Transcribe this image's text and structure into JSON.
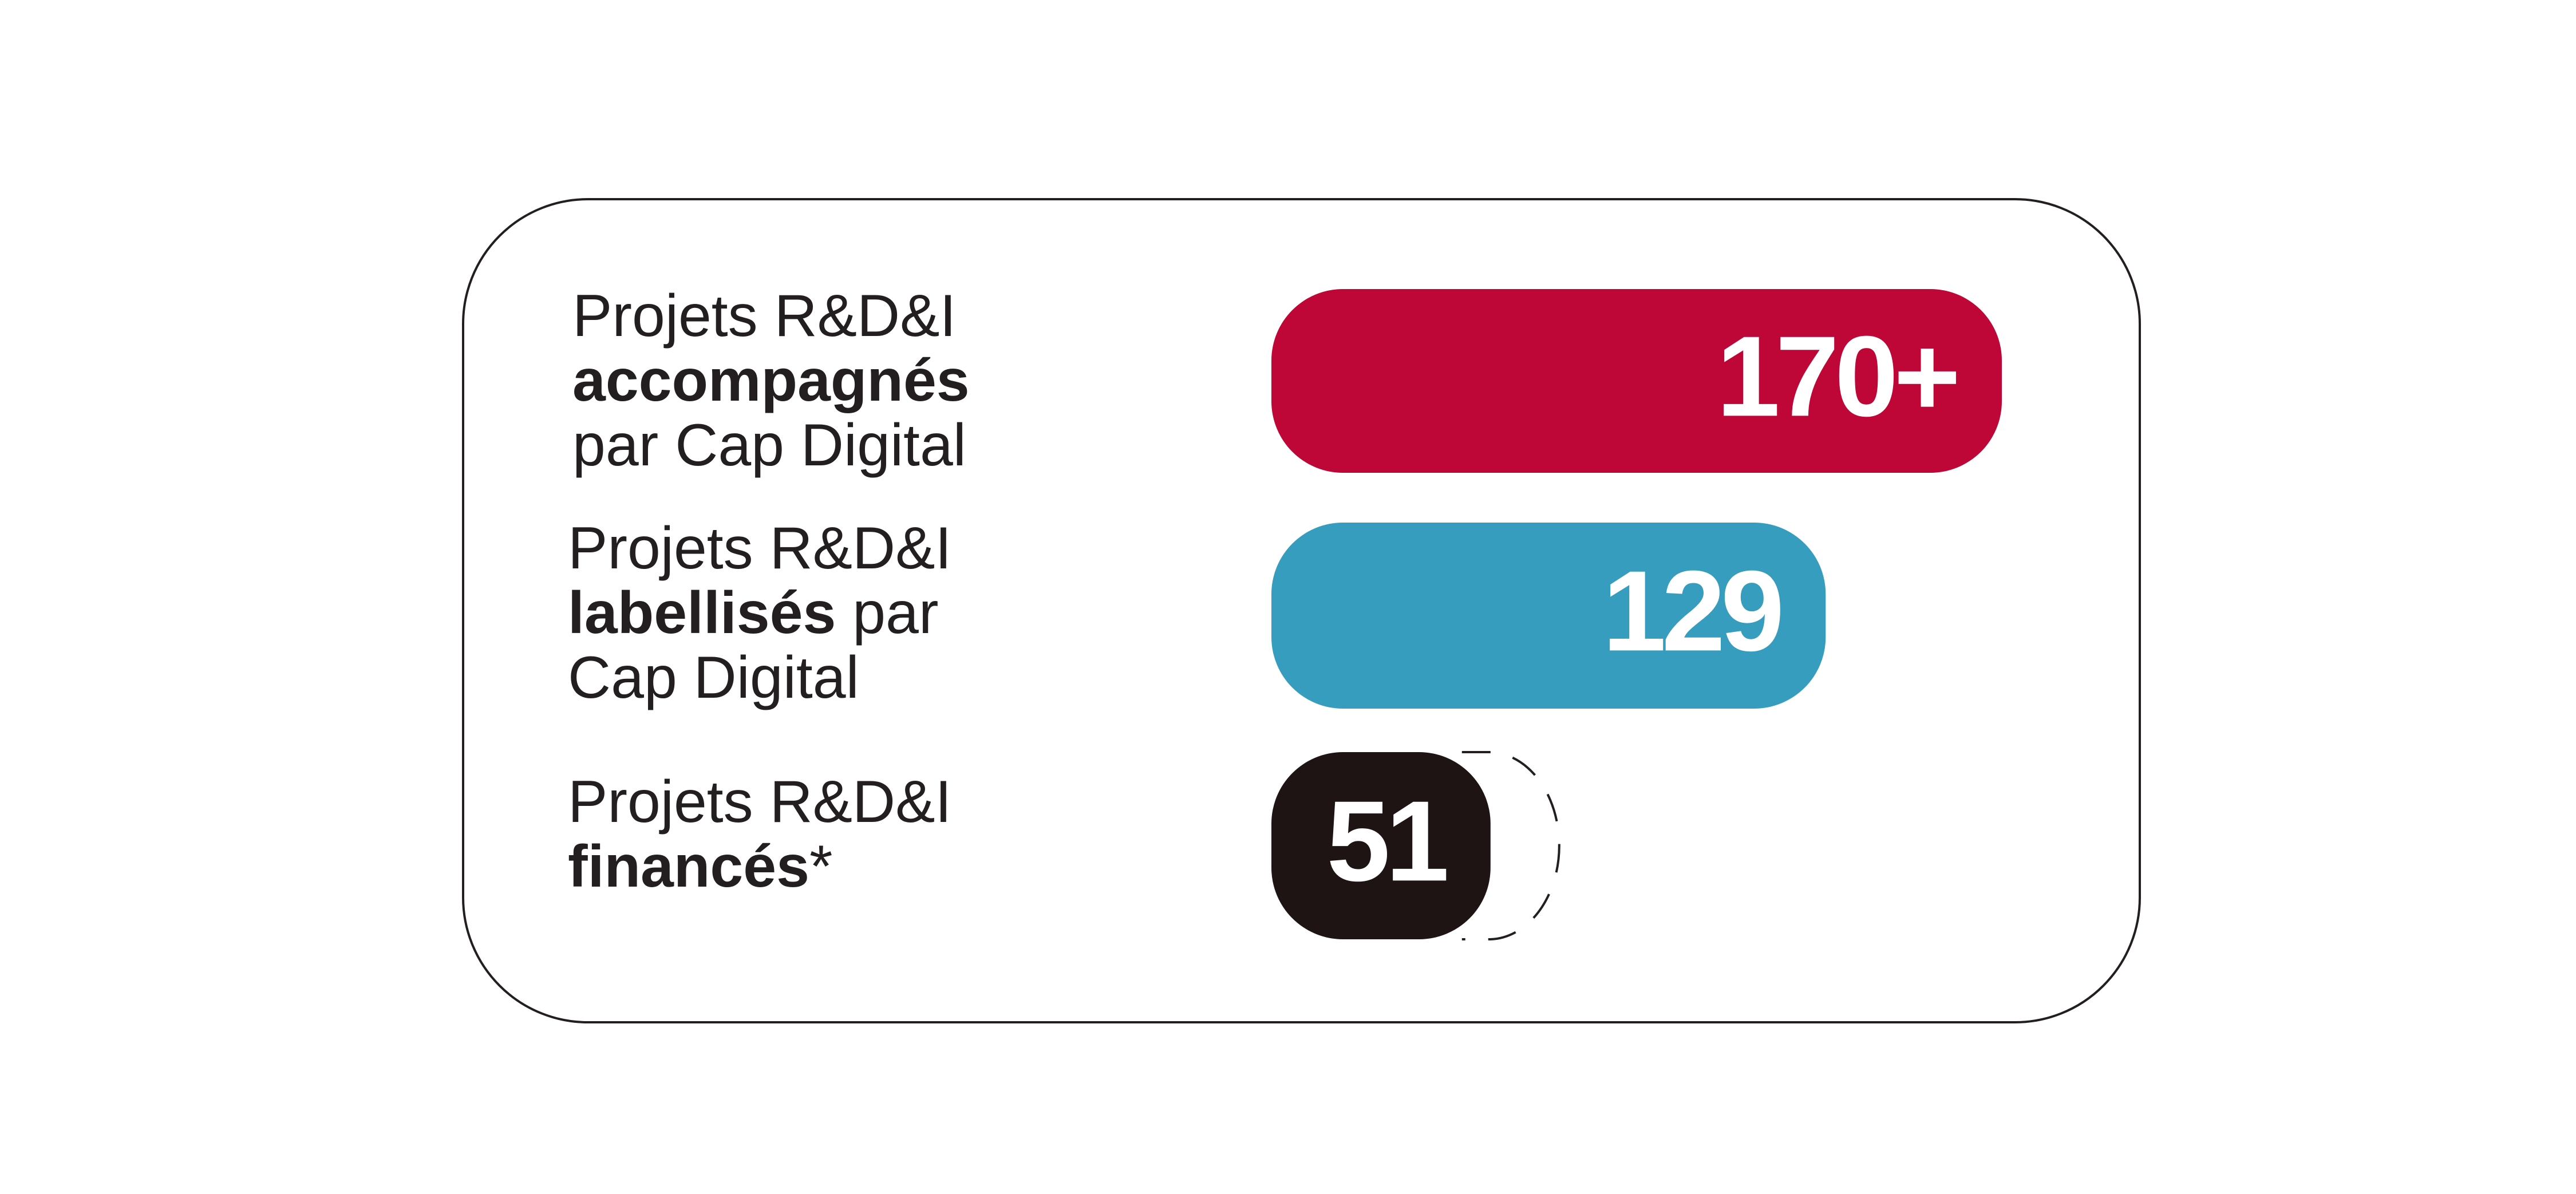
{
  "chart_data": {
    "type": "bar",
    "orientation": "horizontal",
    "categories": [
      [
        [
          "Projets R&D&I"
        ],
        [
          "accompagnés"
        ],
        [
          "par Cap Digital"
        ]
      ],
      [
        [
          "Projets R&D&I"
        ],
        [
          "labellisés",
          " par"
        ],
        [
          "Cap Digital"
        ]
      ],
      [
        [
          "Projets R&D&I"
        ],
        [
          "financés",
          "*"
        ]
      ]
    ],
    "values": [
      170,
      129,
      51
    ],
    "value_labels": [
      "170+",
      "129",
      "51"
    ],
    "colors": [
      "#be0637",
      "#379dbe",
      "#1e1414"
    ]
  }
}
